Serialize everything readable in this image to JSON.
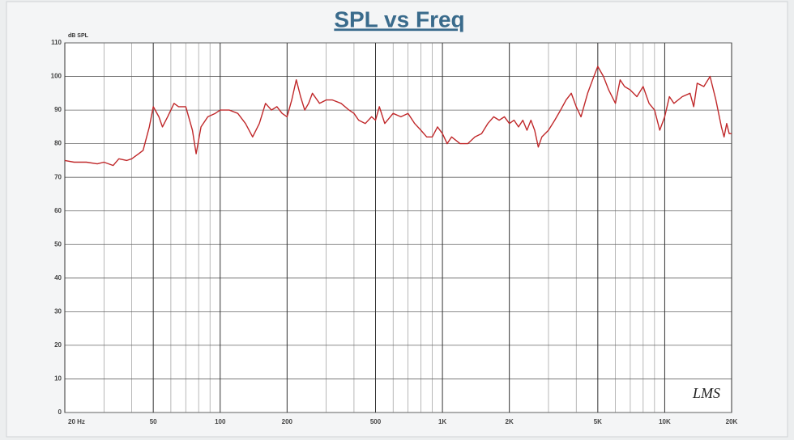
{
  "chart_data": {
    "type": "line",
    "title": "SPL vs Freq",
    "ylabel": "dB SPL",
    "annotation": "LMS",
    "xscale": "log",
    "xlim": [
      20,
      20000
    ],
    "ylim": [
      0,
      110
    ],
    "xticks": [
      {
        "value": 20,
        "label": "20 Hz"
      },
      50,
      100,
      200,
      500,
      {
        "value": 1000,
        "label": "1K"
      },
      {
        "value": 2000,
        "label": "2K"
      },
      {
        "value": 5000,
        "label": "5K"
      },
      {
        "value": 10000,
        "label": "10K"
      },
      {
        "value": 20000,
        "label": "20K"
      }
    ],
    "x_minor_grid": [
      30,
      40,
      60,
      70,
      80,
      90,
      300,
      400,
      600,
      700,
      800,
      900,
      3000,
      4000,
      6000,
      7000,
      8000,
      9000
    ],
    "yticks": [
      0,
      10,
      20,
      30,
      40,
      50,
      60,
      70,
      80,
      90,
      100,
      110
    ],
    "grid": true,
    "x": [
      20,
      22,
      25,
      28,
      30,
      33,
      35,
      38,
      40,
      43,
      45,
      48,
      50,
      53,
      55,
      58,
      62,
      65,
      70,
      75,
      78,
      82,
      88,
      95,
      100,
      110,
      120,
      130,
      140,
      150,
      160,
      170,
      180,
      190,
      200,
      210,
      220,
      230,
      240,
      250,
      260,
      280,
      300,
      320,
      350,
      380,
      400,
      420,
      450,
      480,
      500,
      520,
      550,
      600,
      650,
      700,
      750,
      800,
      850,
      900,
      950,
      1000,
      1050,
      1100,
      1200,
      1300,
      1400,
      1500,
      1600,
      1700,
      1800,
      1900,
      2000,
      2100,
      2200,
      2300,
      2400,
      2500,
      2600,
      2700,
      2800,
      3000,
      3200,
      3400,
      3600,
      3800,
      4000,
      4200,
      4500,
      4800,
      5000,
      5300,
      5600,
      6000,
      6300,
      6600,
      7000,
      7500,
      8000,
      8500,
      9000,
      9500,
      10000,
      10500,
      11000,
      12000,
      13000,
      13500,
      14000,
      15000,
      16000,
      17000,
      18000,
      18500,
      19000,
      19500,
      20000
    ],
    "series": [
      {
        "name": "SPL",
        "color": "#c0282a",
        "values": [
          75,
          74.5,
          74.5,
          74,
          74.5,
          73.5,
          75.5,
          75,
          75.5,
          77,
          78,
          85,
          91,
          88,
          85,
          88,
          92,
          91,
          91,
          84,
          77,
          85,
          88,
          89,
          90,
          90,
          89,
          86,
          82,
          86,
          92,
          90,
          91,
          89,
          88,
          93,
          99,
          94,
          90,
          92,
          95,
          92,
          93,
          93,
          92,
          90,
          89,
          87,
          86,
          88,
          87,
          91,
          86,
          89,
          88,
          89,
          86,
          84,
          82,
          82,
          85,
          83,
          80,
          82,
          80,
          80,
          82,
          83,
          86,
          88,
          87,
          88,
          86,
          87,
          85,
          87,
          84,
          87,
          84,
          79,
          82,
          84,
          87,
          90,
          93,
          95,
          91,
          88,
          95,
          100,
          103,
          100,
          96,
          92,
          99,
          97,
          96,
          94,
          97,
          92,
          90,
          84,
          88,
          94,
          92,
          94,
          95,
          91,
          98,
          97,
          100,
          93,
          85,
          82,
          86,
          83,
          83
        ]
      }
    ]
  }
}
